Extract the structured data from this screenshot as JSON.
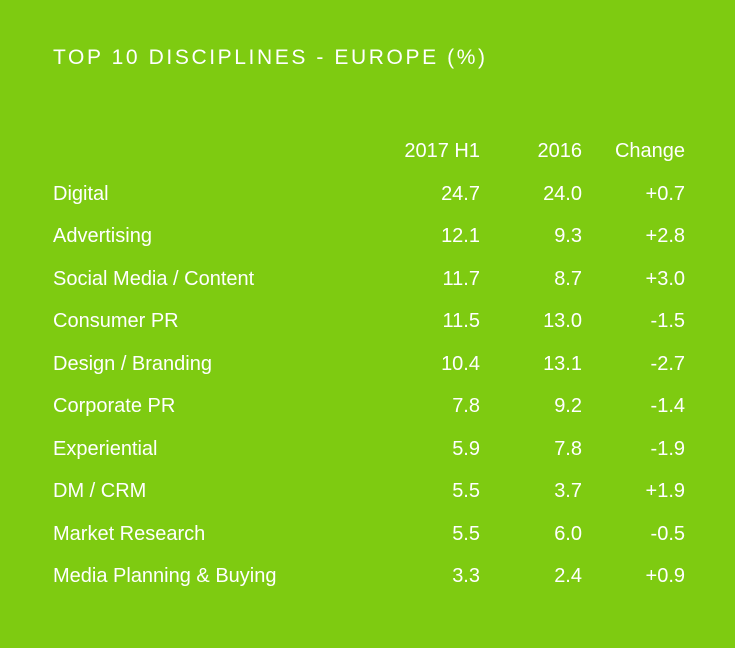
{
  "colors": {
    "background": "#7ecb11",
    "text": "#ffffff"
  },
  "title": "TOP 10 DISCIPLINES - EUROPE (%)",
  "chart_data": {
    "type": "table",
    "title": "TOP 10 DISCIPLINES - EUROPE (%)",
    "columns": [
      "",
      "2017 H1",
      "2016",
      "Change"
    ],
    "rows": [
      {
        "name": "Digital",
        "y2017h1": "24.7",
        "y2016": "24.0",
        "change": "+0.7"
      },
      {
        "name": "Advertising",
        "y2017h1": "12.1",
        "y2016": "9.3",
        "change": "+2.8"
      },
      {
        "name": "Social Media / Content",
        "y2017h1": "11.7",
        "y2016": "8.7",
        "change": "+3.0"
      },
      {
        "name": "Consumer PR",
        "y2017h1": "11.5",
        "y2016": "13.0",
        "change": "-1.5"
      },
      {
        "name": "Design / Branding",
        "y2017h1": "10.4",
        "y2016": "13.1",
        "change": "-2.7"
      },
      {
        "name": "Corporate PR",
        "y2017h1": "7.8",
        "y2016": "9.2",
        "change": "-1.4"
      },
      {
        "name": "Experiential",
        "y2017h1": "5.9",
        "y2016": "7.8",
        "change": "-1.9"
      },
      {
        "name": "DM / CRM",
        "y2017h1": "5.5",
        "y2016": "3.7",
        "change": "+1.9"
      },
      {
        "name": "Market Research",
        "y2017h1": "5.5",
        "y2016": "6.0",
        "change": "-0.5"
      },
      {
        "name": "Media Planning & Buying",
        "y2017h1": "3.3",
        "y2016": "2.4",
        "change": "+0.9"
      }
    ]
  }
}
